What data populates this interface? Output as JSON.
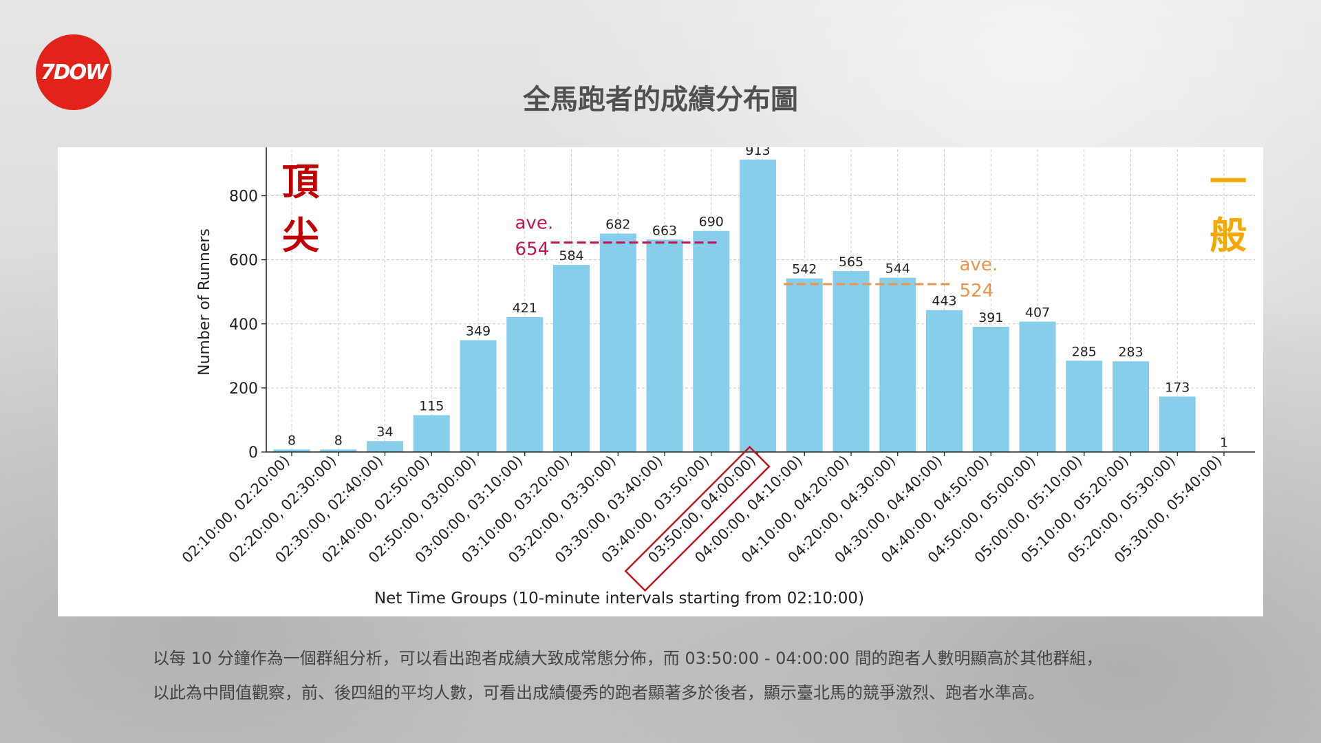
{
  "header": {
    "logo_text": "7DOW",
    "title": "全馬跑者的成績分布圖"
  },
  "side_labels": {
    "top": "頂尖",
    "general": "一般"
  },
  "summary": {
    "line1": "以每 10 分鐘作為一個群組分析，可以看出跑者成績大致成常態分佈，而 03:50:00 - 04:00:00 間的跑者人數明顯高於其他群組，",
    "line2": "以此為中間值觀察，前、後四組的平均人數，可看出成績優秀的跑者顯著多於後者，顯示臺北馬的競爭激烈、跑者水準高。"
  },
  "colors": {
    "bar": "#87ceeb",
    "top_average": "#c0134f",
    "general_average": "#f0924a",
    "highlight_box": "#c0141a",
    "top_label": "#c00000",
    "general_label": "#f5a800"
  },
  "chart_data": {
    "type": "bar",
    "categories": [
      "02:10:00, 02:20:00)",
      "02:20:00, 02:30:00)",
      "02:30:00, 02:40:00)",
      "02:40:00, 02:50:00)",
      "02:50:00, 03:00:00)",
      "03:00:00, 03:10:00)",
      "03:10:00, 03:20:00)",
      "03:20:00, 03:30:00)",
      "03:30:00, 03:40:00)",
      "03:40:00, 03:50:00)",
      "03:50:00, 04:00:00)",
      "04:00:00, 04:10:00)",
      "04:10:00, 04:20:00)",
      "04:20:00, 04:30:00)",
      "04:30:00, 04:40:00)",
      "04:40:00, 04:50:00)",
      "04:50:00, 05:00:00)",
      "05:00:00, 05:10:00)",
      "05:10:00, 05:20:00)",
      "05:20:00, 05:30:00)",
      "05:30:00, 05:40:00)"
    ],
    "values": [
      8,
      8,
      34,
      115,
      349,
      421,
      584,
      682,
      663,
      690,
      913,
      542,
      565,
      544,
      443,
      391,
      407,
      285,
      283,
      173,
      1
    ],
    "xlabel": "Net Time Groups (10-minute intervals starting from 02:10:00)",
    "ylabel": "Number of Runners",
    "ylim": [
      0,
      960
    ],
    "yticks": [
      0,
      200,
      400,
      600,
      800
    ],
    "grid": true,
    "highlight_category": "03:50:00, 04:00:00)",
    "averages": [
      {
        "label_line1": "ave.",
        "label_line2": "654",
        "value": 654,
        "from_category": "03:10:00, 03:20:00)",
        "to_category": "03:40:00, 03:50:00)"
      },
      {
        "label_line1": "ave.",
        "label_line2": "524",
        "value": 524,
        "from_category": "04:00:00, 04:10:00)",
        "to_category": "04:30:00, 04:40:00)"
      }
    ]
  }
}
